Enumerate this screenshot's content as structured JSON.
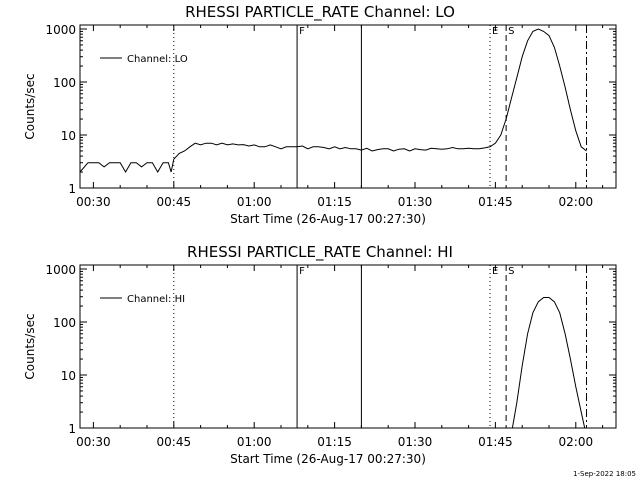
{
  "footer": {
    "timestamp": "1-Sep-2022 18:05"
  },
  "colors": {
    "background": "#ffffff",
    "foreground": "#000000"
  },
  "chart_data": [
    {
      "type": "line",
      "title": "RHESSI PARTICLE_RATE Channel: LO",
      "xlabel": "Start Time (26-Aug-17 00:27:30)",
      "ylabel": "Counts/sec",
      "xscale": "time",
      "yscale": "log",
      "xlim": [
        "00:27:30",
        "02:07:30"
      ],
      "ylim": [
        1,
        1000
      ],
      "xticks": [
        "00:30",
        "00:45",
        "01:00",
        "01:15",
        "01:30",
        "01:45",
        "02:00"
      ],
      "yticks": [
        "1",
        "10",
        "100",
        "1000"
      ],
      "legend": {
        "placement": "top-left",
        "entries": [
          "Channel: LO"
        ]
      },
      "vlines": [
        {
          "time": "00:45:00",
          "style": "dotted",
          "label": ""
        },
        {
          "time": "01:08:00",
          "style": "solid",
          "label": "F"
        },
        {
          "time": "01:20:00",
          "style": "solid",
          "label": ""
        },
        {
          "time": "01:44:00",
          "style": "dotted",
          "label": "E"
        },
        {
          "time": "01:47:00",
          "style": "dashed",
          "label": "S"
        },
        {
          "time": "02:02:00",
          "style": "dashdot",
          "label": ""
        }
      ],
      "series": [
        {
          "name": "Channel: LO",
          "x": [
            "00:27:30",
            "00:29:00",
            "00:30:00",
            "00:31:00",
            "00:32:00",
            "00:33:00",
            "00:34:00",
            "00:35:00",
            "00:36:00",
            "00:37:00",
            "00:38:00",
            "00:39:00",
            "00:40:00",
            "00:41:00",
            "00:42:00",
            "00:43:00",
            "00:44:00",
            "00:44:30",
            "00:45:00",
            "00:46:00",
            "00:47:00",
            "00:48:00",
            "00:49:00",
            "00:50:00",
            "00:51:00",
            "00:52:00",
            "00:53:00",
            "00:54:00",
            "00:55:00",
            "00:56:00",
            "00:57:00",
            "00:58:00",
            "00:59:00",
            "01:00:00",
            "01:01:00",
            "01:02:00",
            "01:03:00",
            "01:04:00",
            "01:05:00",
            "01:06:00",
            "01:07:00",
            "01:08:00",
            "01:09:00",
            "01:10:00",
            "01:11:00",
            "01:12:00",
            "01:13:00",
            "01:14:00",
            "01:15:00",
            "01:16:00",
            "01:17:00",
            "01:18:00",
            "01:19:00",
            "01:20:00",
            "01:21:00",
            "01:22:00",
            "01:23:00",
            "01:24:00",
            "01:25:00",
            "01:26:00",
            "01:27:00",
            "01:28:00",
            "01:29:00",
            "01:30:00",
            "01:31:00",
            "01:32:00",
            "01:33:00",
            "01:34:00",
            "01:35:00",
            "01:36:00",
            "01:37:00",
            "01:38:00",
            "01:39:00",
            "01:40:00",
            "01:41:00",
            "01:42:00",
            "01:43:00",
            "01:44:00",
            "01:45:00",
            "01:46:00",
            "01:47:00",
            "01:48:00",
            "01:49:00",
            "01:50:00",
            "01:51:00",
            "01:52:00",
            "01:53:00",
            "01:54:00",
            "01:55:00",
            "01:56:00",
            "01:57:00",
            "01:58:00",
            "01:59:00",
            "02:00:00",
            "02:01:00",
            "02:02:00"
          ],
          "y": [
            2,
            3,
            3,
            3,
            2.5,
            3,
            3,
            3,
            2,
            3,
            3,
            2.5,
            3,
            3,
            2,
            3,
            3,
            2,
            3.5,
            4.5,
            5,
            6,
            7,
            6.5,
            7,
            7,
            6.5,
            7,
            6.5,
            6.8,
            6.5,
            6.6,
            6.2,
            6.5,
            6,
            6,
            6.5,
            6,
            5.5,
            6,
            6,
            6,
            6.2,
            5.5,
            6,
            6,
            5.8,
            5.5,
            6,
            5.5,
            5.8,
            5.5,
            5.5,
            5.2,
            5.6,
            5,
            5.3,
            5.5,
            5.5,
            5,
            5.4,
            5.5,
            5,
            5.5,
            5.3,
            5.2,
            5.6,
            5.5,
            5.4,
            5.5,
            5.8,
            5.5,
            5.5,
            5.6,
            5.5,
            5.5,
            5.7,
            6,
            7,
            10,
            20,
            50,
            120,
            300,
            600,
            900,
            1000,
            900,
            750,
            450,
            200,
            80,
            30,
            12,
            6,
            5
          ]
        }
      ]
    },
    {
      "type": "line",
      "title": "RHESSI PARTICLE_RATE Channel: HI",
      "xlabel": "Start Time (26-Aug-17 00:27:30)",
      "ylabel": "Counts/sec",
      "xscale": "time",
      "yscale": "log",
      "xlim": [
        "00:27:30",
        "02:07:30"
      ],
      "ylim": [
        1,
        1000
      ],
      "xticks": [
        "00:30",
        "00:45",
        "01:00",
        "01:15",
        "01:30",
        "01:45",
        "02:00"
      ],
      "yticks": [
        "1",
        "10",
        "100",
        "1000"
      ],
      "legend": {
        "placement": "top-left",
        "entries": [
          "Channel: HI"
        ]
      },
      "vlines": [
        {
          "time": "00:45:00",
          "style": "dotted",
          "label": ""
        },
        {
          "time": "01:08:00",
          "style": "solid",
          "label": "F"
        },
        {
          "time": "01:20:00",
          "style": "solid",
          "label": ""
        },
        {
          "time": "01:44:00",
          "style": "dotted",
          "label": "E"
        },
        {
          "time": "01:47:00",
          "style": "dashed",
          "label": "S"
        },
        {
          "time": "02:02:00",
          "style": "dashdot",
          "label": ""
        }
      ],
      "series": [
        {
          "name": "Channel: HI",
          "x": [
            "01:48:10",
            "01:49:00",
            "01:50:00",
            "01:51:00",
            "01:52:00",
            "01:53:00",
            "01:54:00",
            "01:55:00",
            "01:56:00",
            "01:57:00",
            "01:58:00",
            "01:59:00",
            "02:00:00",
            "02:01:00",
            "02:01:40"
          ],
          "y": [
            1,
            3,
            15,
            60,
            150,
            240,
            290,
            290,
            240,
            150,
            60,
            20,
            6,
            2,
            1
          ]
        }
      ]
    }
  ]
}
